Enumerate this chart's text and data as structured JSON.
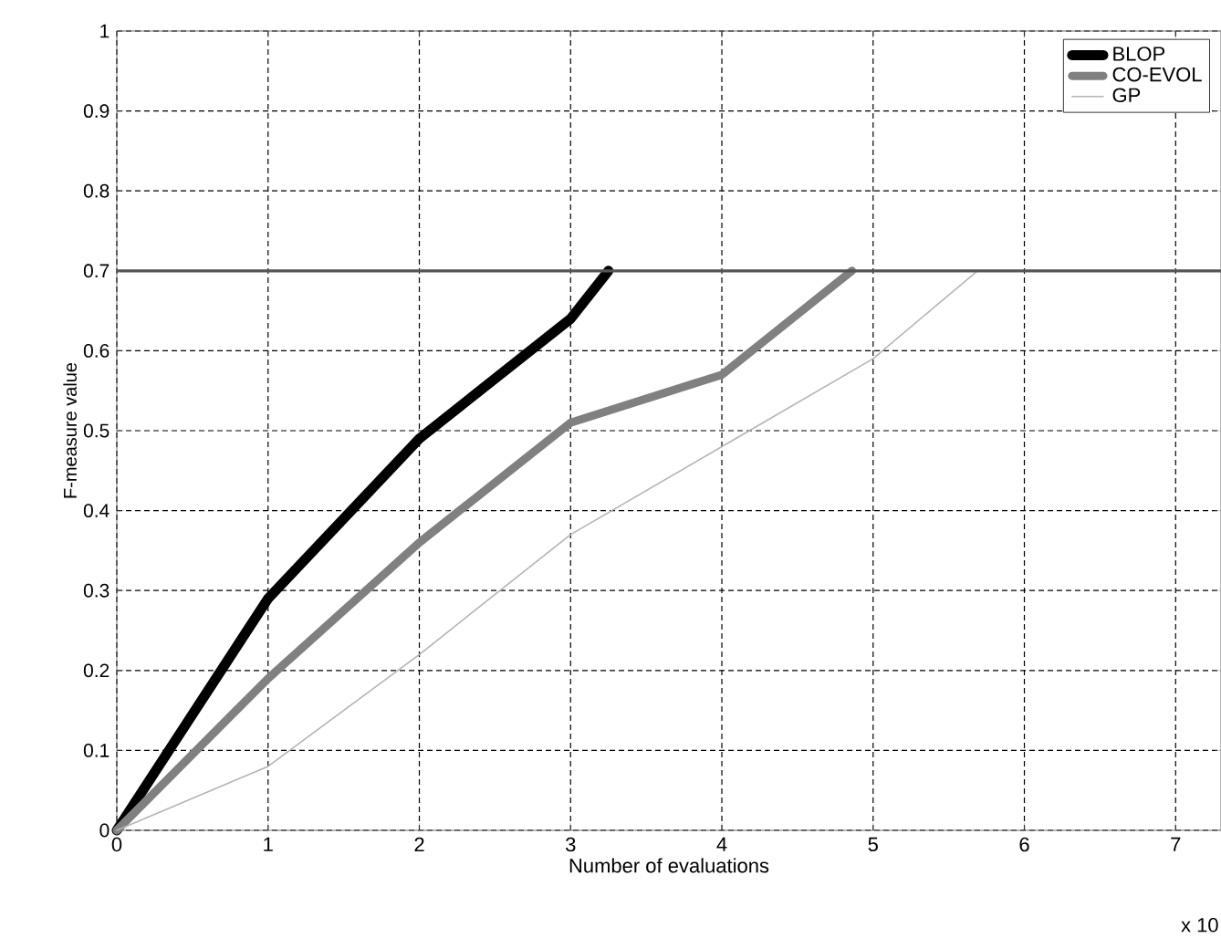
{
  "chart_data": {
    "type": "line",
    "xlabel": "Number of evaluations",
    "ylabel": "F-measure value",
    "annotations": [
      "x 10"
    ],
    "xlim": [
      0,
      7.3
    ],
    "ylim": [
      0,
      1
    ],
    "xticks": [
      0,
      1,
      2,
      3,
      4,
      5,
      6,
      7
    ],
    "yticks": [
      0,
      0.1,
      0.2,
      0.3,
      0.4,
      0.5,
      0.6,
      0.7,
      0.8,
      0.9,
      1
    ],
    "grid": true,
    "legend": "top right",
    "marker": "none",
    "line_style": "solid",
    "ref_lines": [
      {
        "axis": "y",
        "value": 0.7,
        "color": "#555555"
      }
    ],
    "series": [
      {
        "name": "BLOP",
        "color": "#000000",
        "x": [
          0,
          1,
          2,
          3,
          3.25
        ],
        "values": [
          0,
          0.29,
          0.49,
          0.64,
          0.7
        ]
      },
      {
        "name": "CO-EVOL",
        "color": "#808080",
        "x": [
          0,
          1,
          2,
          3,
          4,
          4.86
        ],
        "values": [
          0,
          0.19,
          0.36,
          0.51,
          0.57,
          0.7
        ]
      },
      {
        "name": "GP",
        "color": "#b4b4b4",
        "x": [
          0,
          1,
          2,
          3,
          4,
          5,
          5.69
        ],
        "values": [
          0,
          0.08,
          0.22,
          0.37,
          0.48,
          0.59,
          0.7
        ]
      }
    ]
  }
}
